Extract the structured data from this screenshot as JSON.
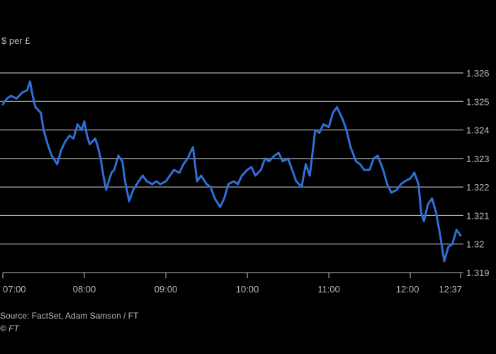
{
  "chart_data": {
    "type": "line",
    "ylabel": "$ per £",
    "ylim": [
      1.319,
      1.326
    ],
    "y_ticks": [
      "1.326",
      "1.325",
      "1.324",
      "1.323",
      "1.322",
      "1.321",
      "1.32",
      "1.319"
    ],
    "x_ticks": [
      "07:00",
      "08:00",
      "09:00",
      "10:00",
      "11:00",
      "12:00",
      "12:37"
    ],
    "xlim": [
      "07:00",
      "12:37"
    ],
    "grid": true,
    "series": [
      {
        "color": "#2f6fd6",
        "x": [
          "07:00",
          "07:03",
          "07:06",
          "07:10",
          "07:14",
          "07:18",
          "07:20",
          "07:22",
          "07:24",
          "07:26",
          "07:28",
          "07:30",
          "07:33",
          "07:36",
          "07:40",
          "07:43",
          "07:46",
          "07:49",
          "07:52",
          "07:55",
          "07:58",
          "08:00",
          "08:02",
          "08:04",
          "08:06",
          "08:08",
          "08:10",
          "08:12",
          "08:14",
          "08:16",
          "08:18",
          "08:20",
          "08:22",
          "08:25",
          "08:28",
          "08:30",
          "08:33",
          "08:36",
          "08:40",
          "08:43",
          "08:46",
          "08:50",
          "08:53",
          "08:56",
          "09:00",
          "09:03",
          "09:06",
          "09:10",
          "09:13",
          "09:16",
          "09:20",
          "09:23",
          "09:26",
          "09:30",
          "09:33",
          "09:36",
          "09:40",
          "09:43",
          "09:46",
          "09:50",
          "09:53",
          "09:56",
          "10:00",
          "10:03",
          "10:06",
          "10:10",
          "10:13",
          "10:16",
          "10:20",
          "10:23",
          "10:26",
          "10:30",
          "10:33",
          "10:36",
          "10:40",
          "10:43",
          "10:46",
          "10:50",
          "10:53",
          "10:56",
          "11:00",
          "11:03",
          "11:06",
          "11:10",
          "11:13",
          "11:16",
          "11:20",
          "11:23",
          "11:26",
          "11:30",
          "11:33",
          "11:36",
          "11:40",
          "11:43",
          "11:46",
          "11:50",
          "11:53",
          "11:56",
          "12:00",
          "12:03",
          "12:06",
          "12:08",
          "12:10",
          "12:13",
          "12:16",
          "12:19",
          "12:22",
          "12:25",
          "12:28",
          "12:31",
          "12:34",
          "12:37"
        ],
        "y": [
          1.3249,
          1.3251,
          1.3252,
          1.3251,
          1.3253,
          1.3254,
          1.3257,
          1.3252,
          1.3248,
          1.3247,
          1.3246,
          1.324,
          1.3235,
          1.3231,
          1.3228,
          1.3233,
          1.3236,
          1.3238,
          1.3237,
          1.3242,
          1.324,
          1.3243,
          1.3238,
          1.3235,
          1.3236,
          1.3237,
          1.3234,
          1.323,
          1.3224,
          1.3219,
          1.3222,
          1.3225,
          1.3226,
          1.3231,
          1.3229,
          1.3222,
          1.3215,
          1.3219,
          1.3222,
          1.3224,
          1.3222,
          1.3221,
          1.3222,
          1.3221,
          1.3222,
          1.3224,
          1.3226,
          1.3225,
          1.3228,
          1.323,
          1.3234,
          1.3222,
          1.3224,
          1.3221,
          1.322,
          1.3216,
          1.3213,
          1.3216,
          1.3221,
          1.3222,
          1.3221,
          1.3224,
          1.3226,
          1.3227,
          1.3224,
          1.3226,
          1.323,
          1.3229,
          1.3231,
          1.3232,
          1.3229,
          1.323,
          1.3226,
          1.3222,
          1.322,
          1.3228,
          1.3224,
          1.324,
          1.3239,
          1.3242,
          1.3241,
          1.3246,
          1.3248,
          1.3244,
          1.324,
          1.3234,
          1.3229,
          1.3228,
          1.3226,
          1.3226,
          1.323,
          1.3231,
          1.3226,
          1.3221,
          1.3218,
          1.3219,
          1.3221,
          1.3222,
          1.3223,
          1.3225,
          1.3221,
          1.3211,
          1.3208,
          1.3214,
          1.3216,
          1.3211,
          1.3203,
          1.3194,
          1.3199,
          1.32,
          1.3205,
          1.3203
        ]
      }
    ],
    "source": "Source: FactSet, Adam Samson / FT",
    "credit": "© FT"
  }
}
